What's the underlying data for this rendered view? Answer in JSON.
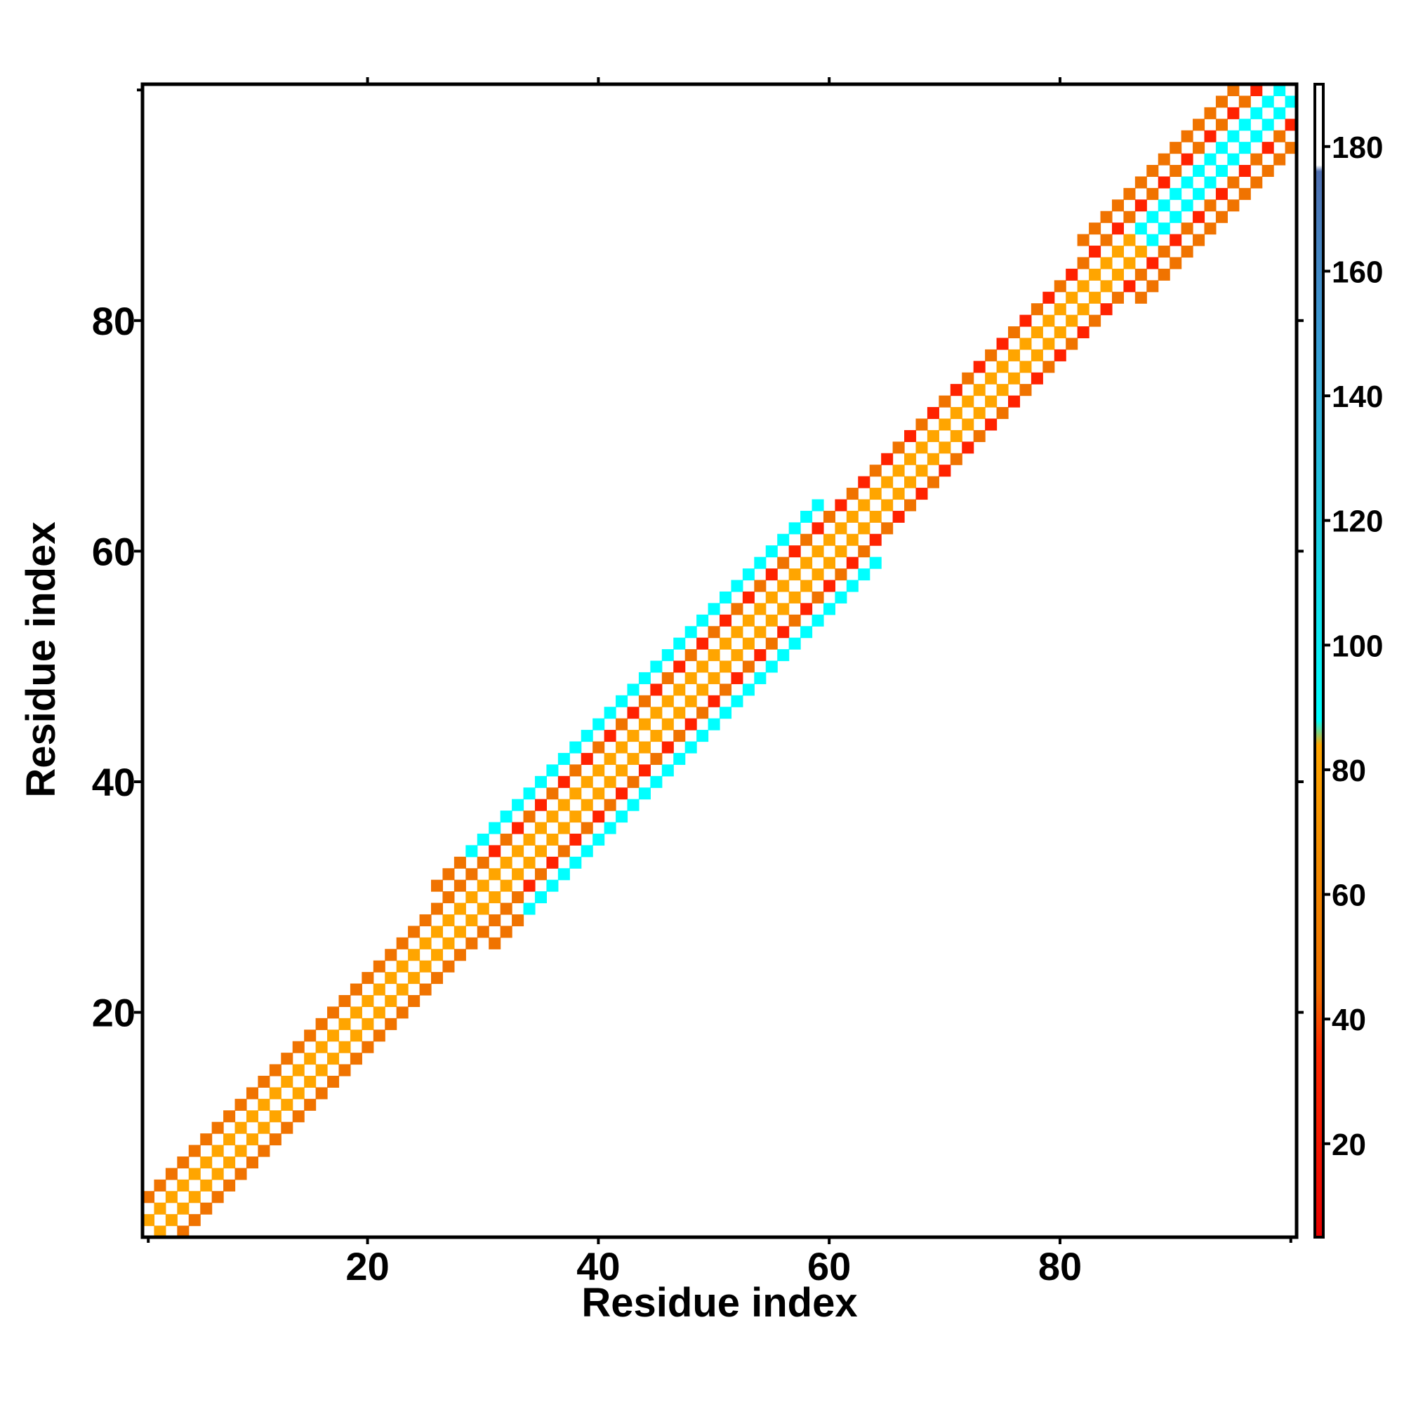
{
  "chart_data": {
    "type": "heatmap",
    "title": "",
    "xlabel": "Residue index",
    "ylabel": "Residue index",
    "xlim": [
      1,
      100
    ],
    "ylim": [
      1,
      100
    ],
    "x_ticks": [
      20,
      40,
      60,
      80
    ],
    "y_ticks": [
      20,
      40,
      60,
      80
    ],
    "x_tick_labels": [
      "20",
      "40",
      "60",
      "80"
    ],
    "y_tick_labels": [
      "20",
      "40",
      "60",
      "80"
    ],
    "grid": false,
    "colorbar": {
      "range": [
        5,
        190
      ],
      "ticks": [
        20,
        40,
        60,
        80,
        100,
        120,
        140,
        160,
        180
      ],
      "tick_labels": [
        "20",
        "40",
        "60",
        "80",
        "100",
        "120",
        "140",
        "160",
        "180"
      ],
      "stops": [
        {
          "value": 5,
          "color": "#e60000"
        },
        {
          "value": 35,
          "color": "#ff2a00"
        },
        {
          "value": 45,
          "color": "#f07000"
        },
        {
          "value": 65,
          "color": "#f28a00"
        },
        {
          "value": 84,
          "color": "#ffa500"
        },
        {
          "value": 88,
          "color": "#00ffff"
        },
        {
          "value": 120,
          "color": "#1ecbe1"
        },
        {
          "value": 150,
          "color": "#3a9bd4"
        },
        {
          "value": 176,
          "color": "#4f6fb0"
        },
        {
          "value": 177,
          "color": "#ffffff"
        },
        {
          "value": 190,
          "color": "#ffffff"
        }
      ]
    },
    "cell_colors": {
      "low": "#ff2200",
      "mid": "#f07300",
      "high": "#ffa500",
      "cyan": "#00ffff"
    },
    "band": {
      "description": "symmetric contact-angle map concentrated along diagonal |i-j|<=6",
      "profile": [
        {
          "from": 1,
          "to": 10,
          "halfwidth": 3
        },
        {
          "from": 10,
          "to": 28,
          "halfwidth": 4
        },
        {
          "from": 28,
          "to": 45,
          "halfwidth": 5
        },
        {
          "from": 45,
          "to": 62,
          "halfwidth": 6
        },
        {
          "from": 62,
          "to": 84,
          "halfwidth": 4
        },
        {
          "from": 84,
          "to": 100,
          "halfwidth": 5
        }
      ]
    }
  }
}
